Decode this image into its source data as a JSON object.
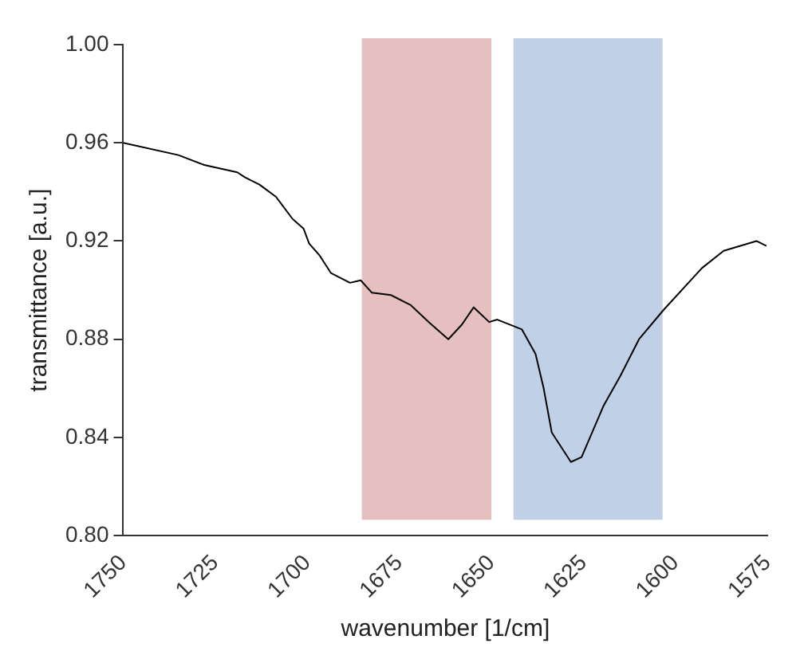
{
  "chart_data": {
    "type": "line",
    "xlabel": "wavenumber [1/cm]",
    "ylabel": "transmittance [a.u.]",
    "xlim": [
      1750,
      1575
    ],
    "xticks": [
      1750,
      1725,
      1700,
      1675,
      1650,
      1625,
      1600,
      1575
    ],
    "ylim": [
      0.8,
      1.0
    ],
    "yticks": [
      {
        "value": 0.8,
        "label": "0.80"
      },
      {
        "value": 0.84,
        "label": "0.84"
      },
      {
        "value": 0.88,
        "label": "0.88"
      },
      {
        "value": 0.92,
        "label": "0.92"
      },
      {
        "value": 0.96,
        "label": "0.96"
      },
      {
        "value": 1.0,
        "label": "1.00"
      }
    ],
    "grid": false,
    "legend": false,
    "marker": "none",
    "line_style": "solid",
    "bands": [
      {
        "axis": "x",
        "from": 1685.2,
        "to": 1650,
        "color": "#e6bfc0"
      },
      {
        "axis": "x",
        "from": 1644,
        "to": 1603.5,
        "color": "#c0d0e6"
      }
    ],
    "series": [
      {
        "color": "#000000",
        "x": [
          1750,
          1735,
          1728,
          1719,
          1717,
          1713,
          1708.5,
          1704,
          1701,
          1699.5,
          1696.6,
          1693.6,
          1688.4,
          1685.5,
          1682.5,
          1677.3,
          1672,
          1667,
          1661.7,
          1658,
          1654.8,
          1650.6,
          1648.4,
          1641.7,
          1638,
          1635.8,
          1633.6,
          1628.4,
          1625.5,
          1619.5,
          1615,
          1609.9,
          1603.2,
          1592.8,
          1586.9,
          1578,
          1575.3
        ],
        "values": [
          0.96,
          0.955,
          0.951,
          0.948,
          0.946,
          0.943,
          0.938,
          0.929,
          0.925,
          0.919,
          0.914,
          0.907,
          0.903,
          0.904,
          0.899,
          0.898,
          0.894,
          0.887,
          0.88,
          0.886,
          0.893,
          0.887,
          0.888,
          0.884,
          0.874,
          0.86,
          0.842,
          0.83,
          0.832,
          0.853,
          0.865,
          0.88,
          0.892,
          0.909,
          0.916,
          0.92,
          0.918
        ]
      }
    ]
  }
}
